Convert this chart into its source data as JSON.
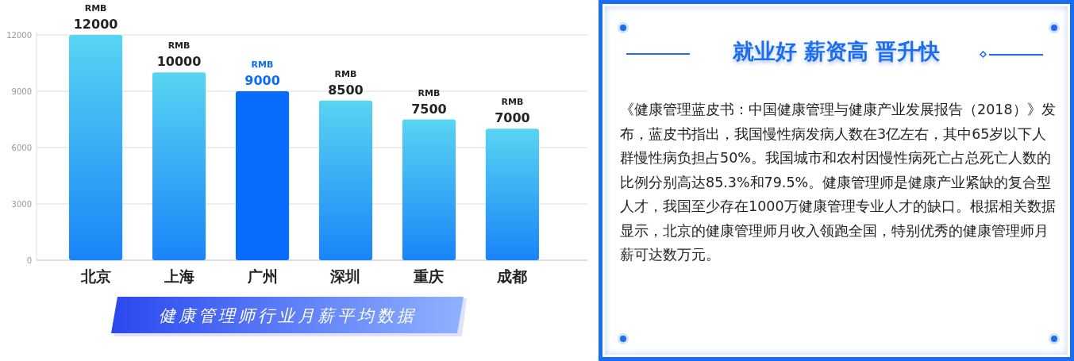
{
  "chart_data": [
    {
      "type": "bar",
      "title": "健康管理师行业月薪平均数据",
      "categories": [
        "北京",
        "上海",
        "广州",
        "深圳",
        "重庆",
        "成都"
      ],
      "values": [
        12000,
        10000,
        9000,
        8500,
        7500,
        7000
      ],
      "colors": [
        "#1a84f8",
        "#1a84f8",
        "#0a6cff",
        "#1a84f8",
        "#1a84f8",
        "#1a84f8"
      ],
      "value_labels": [
        "RMB\n12000",
        "RMB\n10000",
        "RMB\n9000",
        "RMB\n8500",
        "RMB\n7500",
        "RMB\n7000"
      ],
      "ylim": [
        0,
        12000
      ],
      "yticks": [
        0,
        3000,
        6000,
        9000,
        12000
      ],
      "grid": "y"
    },
    {
      "type": "other",
      "title": "就业好 薪资高 晋升快",
      "annotations": [
        "《健康管理蓝皮书：中国健康管理与健康产业发展报告（2018）》发布，蓝皮书指出，我国慢性病发病人数在3亿左右，其中65岁以下人群慢性病负担占50%。我国城市和农村因慢性病死亡占总死亡人数的比例分别高达85.3%和79.5%。健康管理师是健康产业紧缺的复合型人才，我国至少存在1000万健康管理专业人才的缺口。根据相关数据显示，北京的健康管理师月收入领跑全国，特别优秀的健康管理师月薪可达数万元。"
      ]
    }
  ]
}
